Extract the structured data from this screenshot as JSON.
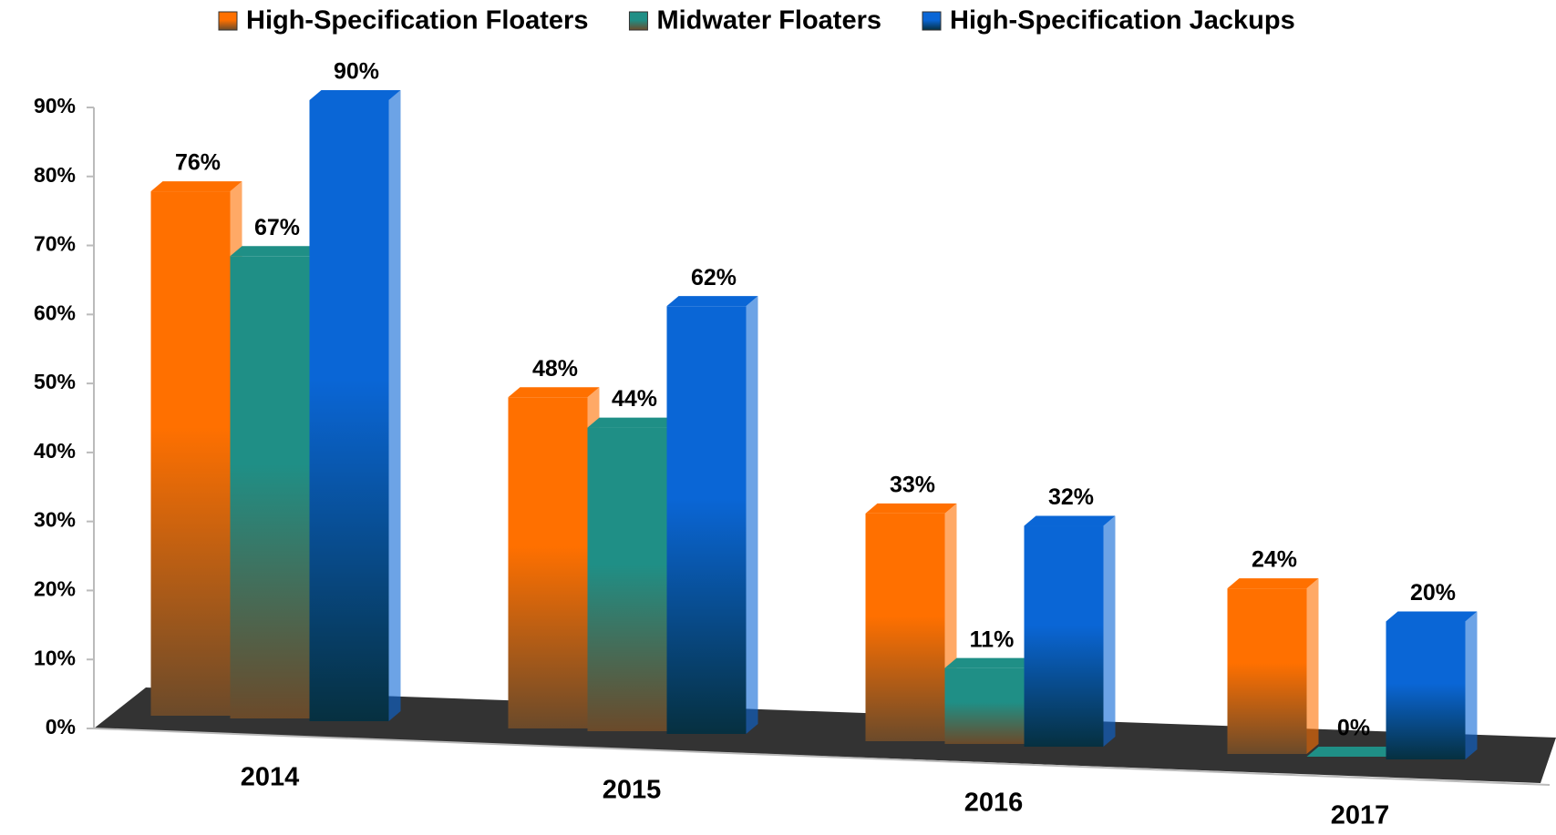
{
  "chart_data": {
    "type": "bar3d",
    "categories": [
      "2014",
      "2015",
      "2016",
      "2017"
    ],
    "series": [
      {
        "name": "High-Specification Floaters",
        "color": "#ff7000",
        "values": [
          76,
          48,
          33,
          24
        ],
        "value_labels": [
          "76%",
          "48%",
          "33%",
          "24%"
        ]
      },
      {
        "name": "Midwater Floaters",
        "color": "#1f8f86",
        "values": [
          67,
          44,
          11,
          0
        ],
        "value_labels": [
          "67%",
          "44%",
          "11%",
          "0%"
        ]
      },
      {
        "name": "High-Specification Jackups",
        "color": "#0a66d6",
        "values": [
          90,
          62,
          32,
          20
        ],
        "value_labels": [
          "90%",
          "62%",
          "32%",
          "20%"
        ]
      }
    ],
    "ylim": [
      0,
      90
    ],
    "yticks": [
      {
        "value": 0,
        "label": "0%"
      },
      {
        "value": 10,
        "label": "10%"
      },
      {
        "value": 20,
        "label": "20%"
      },
      {
        "value": 30,
        "label": "30%"
      },
      {
        "value": 40,
        "label": "40%"
      },
      {
        "value": 50,
        "label": "50%"
      },
      {
        "value": 60,
        "label": "60%"
      },
      {
        "value": 70,
        "label": "70%"
      },
      {
        "value": 80,
        "label": "80%"
      },
      {
        "value": 90,
        "label": "90%"
      }
    ],
    "legend": "top"
  }
}
